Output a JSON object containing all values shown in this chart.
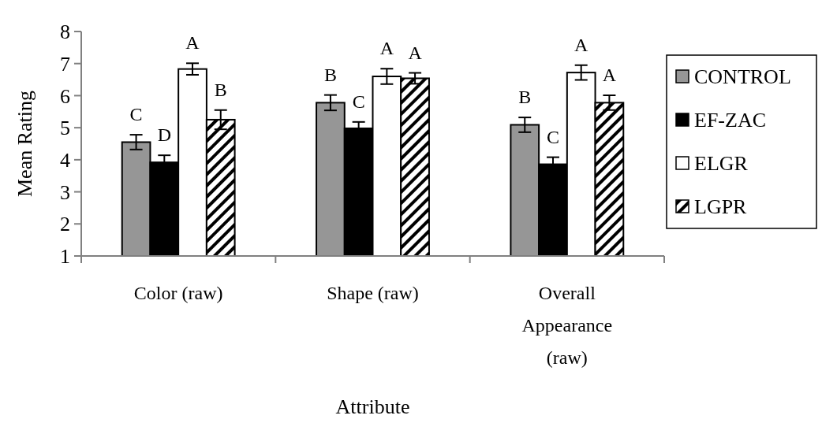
{
  "chart_data": {
    "type": "bar",
    "xlabel": "Attribute",
    "ylabel": "Mean Rating",
    "categories": [
      "Color (raw)",
      "Shape (raw)",
      "Overall Appearance (raw)"
    ],
    "ylim": [
      1,
      8
    ],
    "yticks": [
      1,
      2,
      3,
      4,
      5,
      6,
      7,
      8
    ],
    "grid": false,
    "legend": "right",
    "series": [
      {
        "name": "CONTROL",
        "color": "#969696",
        "values": [
          4.55,
          5.78,
          5.09
        ],
        "errors": [
          0.23,
          0.24,
          0.23
        ],
        "value_labels": [
          "C",
          "B",
          "B"
        ]
      },
      {
        "name": "EF-ZAC",
        "color": "#000000",
        "values": [
          3.92,
          4.98,
          3.86
        ],
        "errors": [
          0.22,
          0.2,
          0.22
        ],
        "value_labels": [
          "D",
          "C",
          "C"
        ]
      },
      {
        "name": "ELGR",
        "color": "#ffffff",
        "values": [
          6.83,
          6.6,
          6.72
        ],
        "errors": [
          0.18,
          0.24,
          0.23
        ],
        "value_labels": [
          "A",
          "A",
          "A"
        ]
      },
      {
        "name": "LGPR",
        "color": "#000000",
        "values": [
          5.25,
          6.54,
          5.78
        ],
        "errors": [
          0.3,
          0.17,
          0.23
        ],
        "value_labels": [
          "B",
          "A",
          "A"
        ]
      }
    ]
  }
}
